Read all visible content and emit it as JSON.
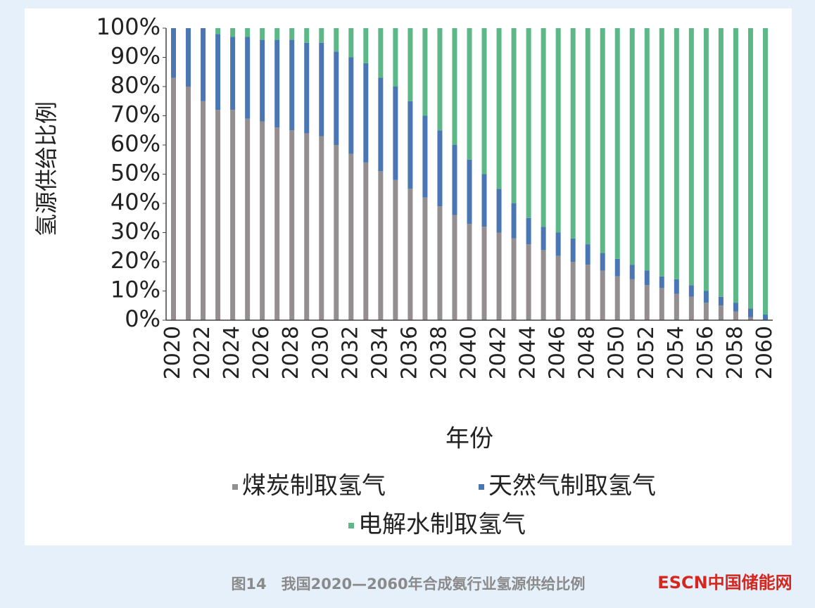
{
  "chart_data": {
    "type": "stacked_bar",
    "y_label": "氢源供给比例",
    "x_label": "年份",
    "categories": [
      "2020",
      null,
      "2022",
      null,
      "2024",
      null,
      "2026",
      null,
      "2028",
      null,
      "2030",
      null,
      "2032",
      null,
      "2034",
      null,
      "2036",
      null,
      "2038",
      null,
      "2040",
      null,
      "2042",
      null,
      "2044",
      null,
      "2046",
      null,
      "2048",
      null,
      "2050",
      null,
      "2052",
      null,
      "2054",
      null,
      "2056",
      null,
      "2058",
      null,
      "2060"
    ],
    "series": [
      {
        "name": "煤炭制取氢气",
        "color": "#948e90",
        "values": [
          83,
          80,
          75,
          72,
          72,
          69,
          68,
          66,
          65,
          64,
          63,
          60,
          57,
          54,
          51,
          48,
          45,
          42,
          39,
          36,
          33,
          32,
          30,
          28,
          26,
          24,
          22,
          20,
          19,
          17,
          15,
          14,
          12,
          11,
          9,
          8,
          6,
          5,
          3,
          1,
          0
        ]
      },
      {
        "name": "天然气制取氢气",
        "color": "#4a76b4",
        "values": [
          17,
          20,
          25,
          26,
          25,
          28,
          28,
          30,
          31,
          31,
          32,
          32,
          33,
          34,
          32,
          32,
          30,
          28,
          26,
          24,
          22,
          18,
          15,
          12,
          9,
          8,
          8,
          8,
          7,
          6,
          6,
          5,
          5,
          4,
          5,
          4,
          4,
          3,
          3,
          3,
          2
        ]
      },
      {
        "name": "电解水制取氢气",
        "color": "#5db887",
        "values": [
          0,
          0,
          0,
          2,
          3,
          3,
          4,
          4,
          4,
          5,
          5,
          8,
          10,
          12,
          17,
          20,
          25,
          30,
          35,
          40,
          45,
          50,
          55,
          60,
          65,
          68,
          70,
          72,
          74,
          77,
          79,
          81,
          83,
          85,
          86,
          88,
          90,
          92,
          94,
          96,
          98
        ]
      }
    ],
    "ylim": [
      0,
      100
    ],
    "yticks": [
      {
        "value": 0,
        "label": "0%"
      },
      {
        "value": 10,
        "label": "10%"
      },
      {
        "value": 20,
        "label": "20%"
      },
      {
        "value": 30,
        "label": "30%"
      },
      {
        "value": 40,
        "label": "40%"
      },
      {
        "value": 50,
        "label": "50%"
      },
      {
        "value": 60,
        "label": "60%"
      },
      {
        "value": 70,
        "label": "70%"
      },
      {
        "value": 80,
        "label": "80%"
      },
      {
        "value": 90,
        "label": "90%"
      },
      {
        "value": 100,
        "label": "100%"
      }
    ],
    "grid": false
  },
  "caption": "图14　我国2020—2060年合成氨行业氢源供给比例",
  "watermark": "ESCN中国储能网"
}
